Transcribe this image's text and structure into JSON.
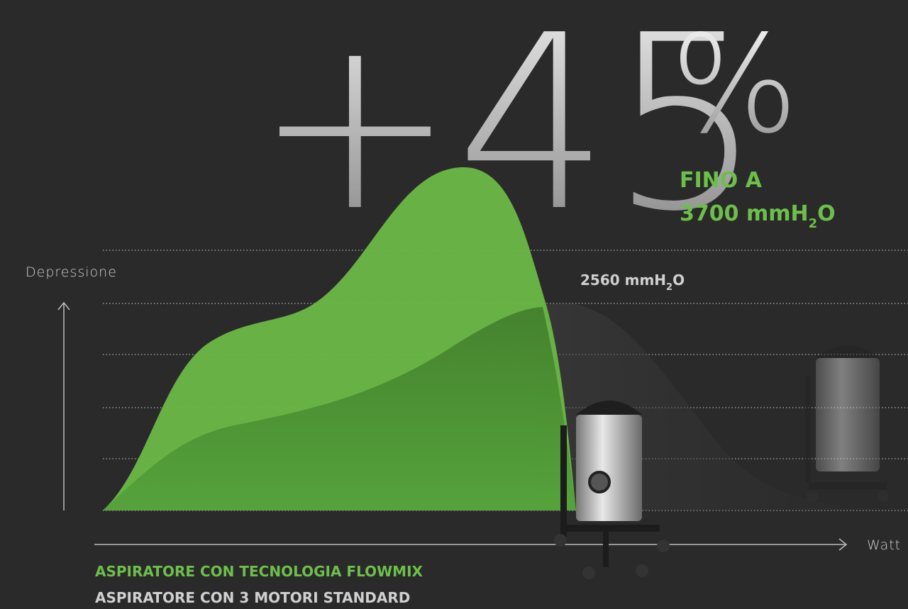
{
  "headline": {
    "value": "+45",
    "unit": "%"
  },
  "callout_max": {
    "line1": "FINO A",
    "value": "3700 mmH",
    "subscript": "2",
    "suffix": "O"
  },
  "callout_standard": {
    "value": "2560 mmH",
    "subscript": "2",
    "suffix": "O"
  },
  "axes": {
    "y_label": "Depressione",
    "x_label": "Watt"
  },
  "legend": {
    "flowmix": "ASPIRATORE CON TECNOLOGIA FLOWMIX",
    "standard": "ASPIRATORE CON 3 MOTORI STANDARD"
  }
}
